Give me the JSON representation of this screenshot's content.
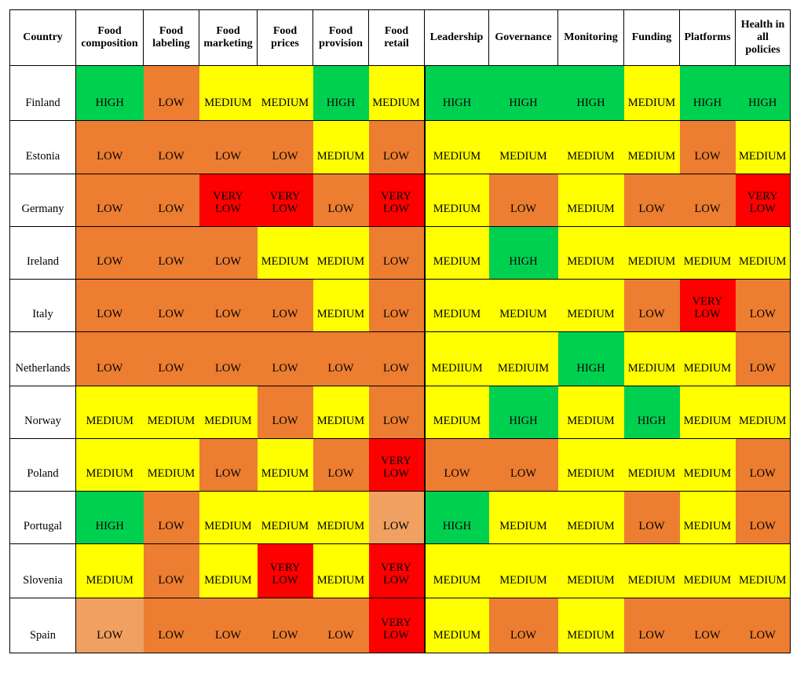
{
  "columns": [
    "Country",
    "Food\ncomposition",
    "Food\nlabeling",
    "Food\nmarketing",
    "Food\nprices",
    "Food\nprovision",
    "Food\nretail",
    "Leadership",
    "Governance",
    "Monitoring",
    "Funding",
    "Platforms",
    "Health in\nall\npolicies"
  ],
  "rows": [
    {
      "country": "Finland",
      "cells": [
        {
          "t": "HIGH",
          "l": "HIGH"
        },
        {
          "t": "LOW",
          "l": "LOW"
        },
        {
          "t": "MEDIUM",
          "l": "MEDIUM"
        },
        {
          "t": "MEDIUM",
          "l": "MEDIUM"
        },
        {
          "t": "HIGH",
          "l": "HIGH"
        },
        {
          "t": "MEDIUM",
          "l": "MEDIUM"
        },
        {
          "t": "HIGH",
          "l": "HIGH"
        },
        {
          "t": "HIGH",
          "l": "HIGH"
        },
        {
          "t": "HIGH",
          "l": "HIGH"
        },
        {
          "t": "MEDIUM",
          "l": "MEDIUM"
        },
        {
          "t": "HIGH",
          "l": "HIGH"
        },
        {
          "t": "HIGH",
          "l": "HIGH"
        }
      ]
    },
    {
      "country": "Estonia",
      "cells": [
        {
          "t": "LOW",
          "l": "LOW"
        },
        {
          "t": "LOW",
          "l": "LOW"
        },
        {
          "t": "LOW",
          "l": "LOW"
        },
        {
          "t": "LOW",
          "l": "LOW"
        },
        {
          "t": "MEDIUM",
          "l": "MEDIUM"
        },
        {
          "t": "LOW",
          "l": "LOW"
        },
        {
          "t": "MEDIUM",
          "l": "MEDIUM"
        },
        {
          "t": "MEDIUM",
          "l": "MEDIUM"
        },
        {
          "t": "MEDIUM",
          "l": "MEDIUM"
        },
        {
          "t": "MEDIUM",
          "l": "MEDIUM"
        },
        {
          "t": "LOW",
          "l": "LOW"
        },
        {
          "t": "MEDIUM",
          "l": "MEDIUM"
        }
      ]
    },
    {
      "country": "Germany",
      "cells": [
        {
          "t": "LOW",
          "l": "LOW"
        },
        {
          "t": "LOW",
          "l": "LOW"
        },
        {
          "t": "VERY\nLOW",
          "l": "VERYLOW"
        },
        {
          "t": "VERY\nLOW",
          "l": "VERYLOW"
        },
        {
          "t": "LOW",
          "l": "LOW"
        },
        {
          "t": "VERY\nLOW",
          "l": "VERYLOW"
        },
        {
          "t": "MEDIUM",
          "l": "MEDIUM"
        },
        {
          "t": "LOW",
          "l": "LOW"
        },
        {
          "t": "MEDIUM",
          "l": "MEDIUM"
        },
        {
          "t": "LOW",
          "l": "LOW"
        },
        {
          "t": "LOW",
          "l": "LOW"
        },
        {
          "t": "VERY\nLOW",
          "l": "VERYLOW"
        }
      ]
    },
    {
      "country": "Ireland",
      "cells": [
        {
          "t": "LOW",
          "l": "LOW"
        },
        {
          "t": "LOW",
          "l": "LOW"
        },
        {
          "t": "LOW",
          "l": "LOW"
        },
        {
          "t": "MEDIUM",
          "l": "MEDIUM"
        },
        {
          "t": "MEDIUM",
          "l": "MEDIUM"
        },
        {
          "t": "LOW",
          "l": "LOW"
        },
        {
          "t": "MEDIUM",
          "l": "MEDIUM"
        },
        {
          "t": "HIGH",
          "l": "HIGH"
        },
        {
          "t": "MEDIUM",
          "l": "MEDIUM"
        },
        {
          "t": "MEDIUM",
          "l": "MEDIUM"
        },
        {
          "t": "MEDIUM",
          "l": "MEDIUM"
        },
        {
          "t": "MEDIUM",
          "l": "MEDIUM"
        }
      ]
    },
    {
      "country": "Italy",
      "cells": [
        {
          "t": "LOW",
          "l": "LOW"
        },
        {
          "t": "LOW",
          "l": "LOW"
        },
        {
          "t": "LOW",
          "l": "LOW"
        },
        {
          "t": "LOW",
          "l": "LOW"
        },
        {
          "t": "MEDIUM",
          "l": "MEDIUM"
        },
        {
          "t": "LOW",
          "l": "LOW"
        },
        {
          "t": "MEDIUM",
          "l": "MEDIUM"
        },
        {
          "t": "MEDIUM",
          "l": "MEDIUM"
        },
        {
          "t": "MEDIUM",
          "l": "MEDIUM"
        },
        {
          "t": "LOW",
          "l": "LOW"
        },
        {
          "t": "VERY\nLOW",
          "l": "VERYLOW"
        },
        {
          "t": "LOW",
          "l": "LOW"
        }
      ]
    },
    {
      "country": "Netherlands",
      "cells": [
        {
          "t": "LOW",
          "l": "LOW"
        },
        {
          "t": "LOW",
          "l": "LOW"
        },
        {
          "t": "LOW",
          "l": "LOW"
        },
        {
          "t": "LOW",
          "l": "LOW"
        },
        {
          "t": "LOW",
          "l": "LOW"
        },
        {
          "t": "LOW",
          "l": "LOW"
        },
        {
          "t": "MEDIIUM",
          "l": "MEDIUM"
        },
        {
          "t": "MEDIUIM",
          "l": "MEDIUM"
        },
        {
          "t": "HIGH",
          "l": "HIGH"
        },
        {
          "t": "MEDIUM",
          "l": "MEDIUM"
        },
        {
          "t": "MEDIUM",
          "l": "MEDIUM"
        },
        {
          "t": "LOW",
          "l": "LOW"
        }
      ]
    },
    {
      "country": "Norway",
      "cells": [
        {
          "t": "MEDIUM",
          "l": "MEDIUM"
        },
        {
          "t": "MEDIUM",
          "l": "MEDIUM"
        },
        {
          "t": "MEDIUM",
          "l": "MEDIUM"
        },
        {
          "t": "LOW",
          "l": "LOW"
        },
        {
          "t": "MEDIUM",
          "l": "MEDIUM"
        },
        {
          "t": "LOW",
          "l": "LOW"
        },
        {
          "t": "MEDIUM",
          "l": "MEDIUM"
        },
        {
          "t": "HIGH",
          "l": "HIGH"
        },
        {
          "t": "MEDIUM",
          "l": "MEDIUM"
        },
        {
          "t": "HIGH",
          "l": "HIGH"
        },
        {
          "t": "MEDIUM",
          "l": "MEDIUM"
        },
        {
          "t": "MEDIUM",
          "l": "MEDIUM"
        }
      ]
    },
    {
      "country": "Poland",
      "cells": [
        {
          "t": "MEDIUM",
          "l": "MEDIUM"
        },
        {
          "t": "MEDIUM",
          "l": "MEDIUM"
        },
        {
          "t": "LOW",
          "l": "LOW"
        },
        {
          "t": "MEDIUM",
          "l": "MEDIUM"
        },
        {
          "t": "LOW",
          "l": "LOW"
        },
        {
          "t": "VERY\nLOW",
          "l": "VERYLOW"
        },
        {
          "t": "LOW",
          "l": "LOW"
        },
        {
          "t": "LOW",
          "l": "LOW"
        },
        {
          "t": "MEDIUM",
          "l": "MEDIUM"
        },
        {
          "t": "MEDIUM",
          "l": "MEDIUM"
        },
        {
          "t": "MEDIUM",
          "l": "MEDIUM"
        },
        {
          "t": "LOW",
          "l": "LOW"
        }
      ]
    },
    {
      "country": "Portugal",
      "cells": [
        {
          "t": "HIGH",
          "l": "HIGH"
        },
        {
          "t": "LOW",
          "l": "LOW"
        },
        {
          "t": "MEDIUM",
          "l": "MEDIUM"
        },
        {
          "t": "MEDIUM",
          "l": "MEDIUM"
        },
        {
          "t": "MEDIUM",
          "l": "MEDIUM"
        },
        {
          "t": "LOW",
          "l": "LOWLIGHT"
        },
        {
          "t": "HIGH",
          "l": "HIGH"
        },
        {
          "t": "MEDIUM",
          "l": "MEDIUM"
        },
        {
          "t": "MEDIUM",
          "l": "MEDIUM"
        },
        {
          "t": "LOW",
          "l": "LOW"
        },
        {
          "t": "MEDIUM",
          "l": "MEDIUM"
        },
        {
          "t": "LOW",
          "l": "LOW"
        }
      ]
    },
    {
      "country": "Slovenia",
      "cells": [
        {
          "t": "MEDIUM",
          "l": "MEDIUM"
        },
        {
          "t": "LOW",
          "l": "LOW"
        },
        {
          "t": "MEDIUM",
          "l": "MEDIUM"
        },
        {
          "t": "VERY\nLOW",
          "l": "VERYLOW"
        },
        {
          "t": "MEDIUM",
          "l": "MEDIUM"
        },
        {
          "t": "VERY\nLOW",
          "l": "VERYLOW"
        },
        {
          "t": "MEDIUM",
          "l": "MEDIUM"
        },
        {
          "t": "MEDIUM",
          "l": "MEDIUM"
        },
        {
          "t": "MEDIUM",
          "l": "MEDIUM"
        },
        {
          "t": "MEDIUM",
          "l": "MEDIUM"
        },
        {
          "t": "MEDIUM",
          "l": "MEDIUM"
        },
        {
          "t": "MEDIUM",
          "l": "MEDIUM"
        }
      ]
    },
    {
      "country": "Spain",
      "cells": [
        {
          "t": "LOW",
          "l": "LOWLIGHT"
        },
        {
          "t": "LOW",
          "l": "LOW"
        },
        {
          "t": "LOW",
          "l": "LOW"
        },
        {
          "t": "LOW",
          "l": "LOW"
        },
        {
          "t": "LOW",
          "l": "LOW"
        },
        {
          "t": "VERY\nLOW",
          "l": "VERYLOW"
        },
        {
          "t": "MEDIUM",
          "l": "MEDIUM"
        },
        {
          "t": "LOW",
          "l": "LOW"
        },
        {
          "t": "MEDIUM",
          "l": "MEDIUM"
        },
        {
          "t": "LOW",
          "l": "LOW"
        },
        {
          "t": "LOW",
          "l": "LOW"
        },
        {
          "t": "LOW",
          "l": "LOW"
        }
      ]
    }
  ],
  "colors": {
    "HIGH": "#00d050",
    "MEDIUM": "#ffff00",
    "LOW": "#ed7d31",
    "VERYLOW": "#ff0000",
    "LOWLIGHT": "#f0a060"
  }
}
